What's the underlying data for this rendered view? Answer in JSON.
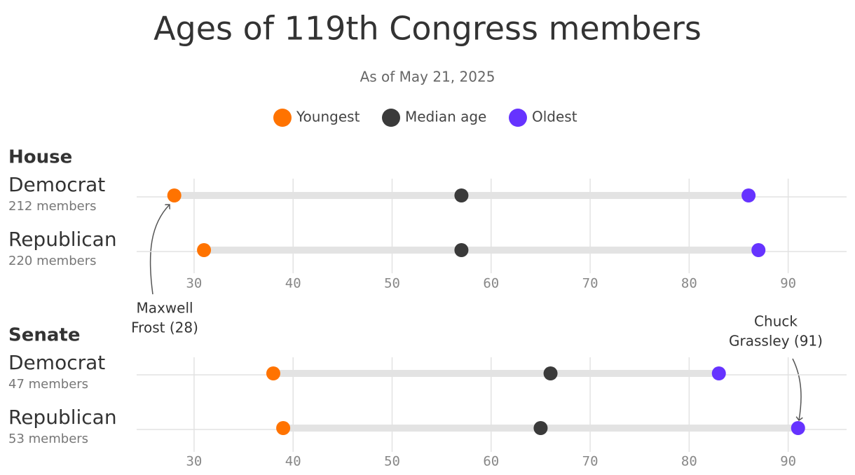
{
  "chart_data": {
    "type": "dumbbell",
    "title": "Ages of 119th Congress members",
    "subtitle": "As of May 21, 2025",
    "series": [
      {
        "name": "Youngest",
        "color": "#ff7300"
      },
      {
        "name": "Median age",
        "color": "#3a3a3a"
      },
      {
        "name": "Oldest",
        "color": "#6633ff"
      }
    ],
    "xlim": [
      24.2,
      95.9
    ],
    "xticks": [
      30,
      40,
      50,
      60,
      70,
      80,
      90
    ],
    "grid": true,
    "panels": [
      {
        "title": "House",
        "categories": [
          "Democrat",
          "Republican"
        ],
        "notes": [
          "212 members",
          "220 members"
        ],
        "values": [
          [
            28,
            31
          ],
          [
            57,
            57
          ],
          [
            86,
            87
          ]
        ],
        "annotation": [
          "Maxwell",
          "Frost (28)"
        ]
      },
      {
        "title": "Senate",
        "categories": [
          "Democrat",
          "Republican"
        ],
        "notes": [
          "47 members",
          "53 members"
        ],
        "values": [
          [
            38,
            39
          ],
          [
            66,
            65
          ],
          [
            83,
            91
          ]
        ],
        "annotation": [
          "Chuck",
          "Grassley (91)"
        ]
      }
    ]
  }
}
